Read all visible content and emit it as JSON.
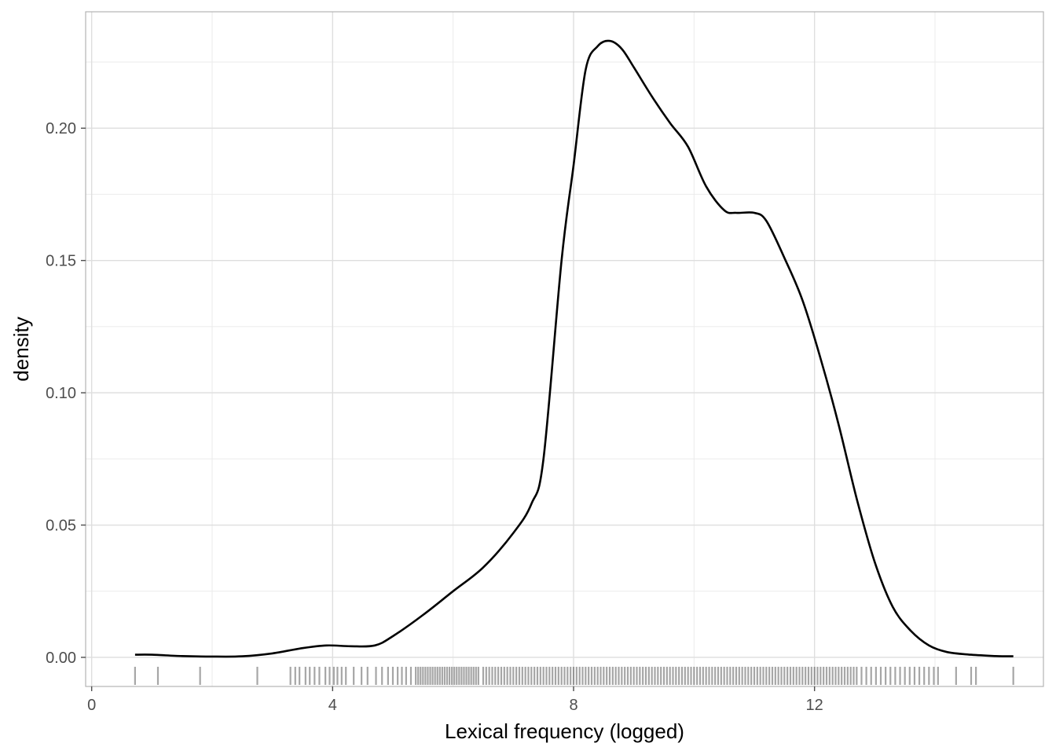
{
  "chart_data": {
    "type": "line",
    "title": "",
    "xlabel": "Lexical frequency (logged)",
    "ylabel": "density",
    "xlim": [
      -0.1,
      15.8
    ],
    "ylim": [
      -0.011,
      0.244
    ],
    "x_ticks": [
      0,
      4,
      8,
      12
    ],
    "x_tick_labels": [
      "0",
      "4",
      "8",
      "12"
    ],
    "x_minor_ticks": [
      2,
      6,
      10,
      14
    ],
    "y_ticks": [
      0.0,
      0.05,
      0.1,
      0.15,
      0.2
    ],
    "y_tick_labels": [
      "0.00",
      "0.05",
      "0.10",
      "0.15",
      "0.20"
    ],
    "y_minor_ticks": [
      0.025,
      0.075,
      0.125,
      0.175,
      0.225
    ],
    "grid": true,
    "series": [
      {
        "x": [
          0.72,
          1.0,
          1.5,
          2.0,
          2.5,
          3.0,
          3.5,
          3.9,
          4.3,
          4.7,
          5.0,
          5.5,
          6.0,
          6.5,
          7.0,
          7.3,
          7.5,
          7.8,
          8.0,
          8.2,
          8.4,
          8.6,
          8.8,
          9.0,
          9.3,
          9.6,
          9.9,
          10.2,
          10.5,
          10.7,
          11.0,
          11.2,
          11.5,
          11.8,
          12.1,
          12.4,
          12.7,
          13.0,
          13.3,
          13.6,
          13.9,
          14.2,
          14.6,
          15.0,
          15.3
        ],
        "y": [
          0.001,
          0.001,
          0.0005,
          0.0003,
          0.0004,
          0.0015,
          0.0035,
          0.0045,
          0.0042,
          0.0045,
          0.008,
          0.016,
          0.025,
          0.034,
          0.047,
          0.058,
          0.075,
          0.15,
          0.186,
          0.222,
          0.231,
          0.233,
          0.23,
          0.223,
          0.212,
          0.202,
          0.193,
          0.178,
          0.169,
          0.168,
          0.168,
          0.165,
          0.151,
          0.135,
          0.113,
          0.088,
          0.06,
          0.036,
          0.019,
          0.01,
          0.0045,
          0.002,
          0.001,
          0.0005,
          0.0004
        ],
        "color": "#000000"
      }
    ],
    "rug": {
      "color": "#000000",
      "values": [
        0.72,
        1.1,
        1.8,
        2.75,
        3.3,
        3.38,
        3.45,
        3.55,
        3.62,
        3.7,
        3.78,
        3.88,
        3.95,
        4.02,
        4.08,
        4.15,
        4.22,
        4.35,
        4.48,
        4.58,
        4.72,
        4.82,
        4.92,
        5.0,
        5.08,
        5.15,
        5.22,
        5.3,
        5.38,
        5.42,
        5.46,
        5.5,
        5.54,
        5.58,
        5.62,
        5.66,
        5.7,
        5.74,
        5.78,
        5.82,
        5.86,
        5.9,
        5.94,
        5.98,
        6.02,
        6.06,
        6.1,
        6.14,
        6.18,
        6.22,
        6.26,
        6.3,
        6.34,
        6.38,
        6.42,
        6.5,
        6.55,
        6.6,
        6.65,
        6.7,
        6.75,
        6.8,
        6.85,
        6.9,
        6.95,
        7.0,
        7.05,
        7.1,
        7.15,
        7.2,
        7.25,
        7.3,
        7.35,
        7.4,
        7.45,
        7.5,
        7.55,
        7.6,
        7.65,
        7.7,
        7.75,
        7.8,
        7.85,
        7.9,
        7.95,
        8.0,
        8.05,
        8.1,
        8.15,
        8.2,
        8.25,
        8.3,
        8.35,
        8.4,
        8.45,
        8.5,
        8.55,
        8.6,
        8.65,
        8.7,
        8.75,
        8.8,
        8.85,
        8.9,
        8.95,
        9.0,
        9.05,
        9.1,
        9.15,
        9.2,
        9.25,
        9.3,
        9.35,
        9.4,
        9.45,
        9.5,
        9.55,
        9.6,
        9.65,
        9.7,
        9.75,
        9.8,
        9.85,
        9.9,
        9.95,
        10.0,
        10.05,
        10.1,
        10.15,
        10.2,
        10.25,
        10.3,
        10.35,
        10.4,
        10.45,
        10.5,
        10.55,
        10.6,
        10.65,
        10.7,
        10.75,
        10.8,
        10.85,
        10.9,
        10.95,
        11.0,
        11.05,
        11.1,
        11.15,
        11.2,
        11.25,
        11.3,
        11.35,
        11.4,
        11.45,
        11.5,
        11.55,
        11.6,
        11.65,
        11.7,
        11.75,
        11.8,
        11.85,
        11.9,
        11.95,
        12.0,
        12.05,
        12.1,
        12.15,
        12.2,
        12.25,
        12.3,
        12.35,
        12.4,
        12.45,
        12.5,
        12.55,
        12.6,
        12.65,
        12.7,
        12.78,
        12.86,
        12.94,
        13.02,
        13.1,
        13.18,
        13.26,
        13.34,
        13.42,
        13.5,
        13.58,
        13.66,
        13.74,
        13.82,
        13.9,
        13.98,
        14.05,
        14.35,
        14.6,
        14.68,
        15.3
      ]
    }
  }
}
